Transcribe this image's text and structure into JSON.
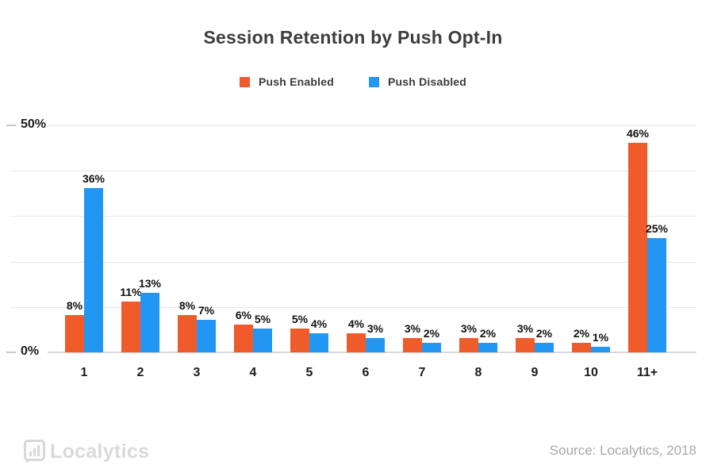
{
  "title": "Session Retention by Push Opt-In",
  "legend": [
    {
      "label": "Push Enabled",
      "color": "#f05b2b"
    },
    {
      "label": "Push Disabled",
      "color": "#2196f3"
    }
  ],
  "chart_data": {
    "type": "bar",
    "title": "Session Retention by Push Opt-In",
    "categories": [
      "1",
      "2",
      "3",
      "4",
      "5",
      "6",
      "7",
      "8",
      "9",
      "10",
      "11+"
    ],
    "series": [
      {
        "name": "Push Enabled",
        "color": "#f05b2b",
        "values": [
          8,
          11,
          8,
          6,
          5,
          4,
          3,
          3,
          3,
          2,
          46
        ]
      },
      {
        "name": "Push Disabled",
        "color": "#2196f3",
        "values": [
          36,
          13,
          7,
          5,
          4,
          3,
          2,
          2,
          2,
          1,
          25
        ]
      }
    ],
    "value_suffix": "%",
    "xlabel": "",
    "ylabel": "",
    "ylim": [
      0,
      50
    ],
    "grid": true,
    "gridline_values": [
      0,
      10,
      20,
      30,
      40,
      50
    ],
    "y_ticks": [
      {
        "value": 50,
        "label": "50%"
      },
      {
        "value": 0,
        "label": "0%"
      }
    ],
    "legend_position": "top"
  },
  "footer": {
    "logo_text": "Localytics",
    "source": "Source: Localytics, 2018"
  },
  "colors": {
    "push_enabled": "#f05b2b",
    "push_disabled": "#2196f3",
    "grid": "#e7e7e8",
    "axis": "#d8d8da",
    "muted_gray": "#d9d9db",
    "source_gray": "#a8a8a8"
  }
}
